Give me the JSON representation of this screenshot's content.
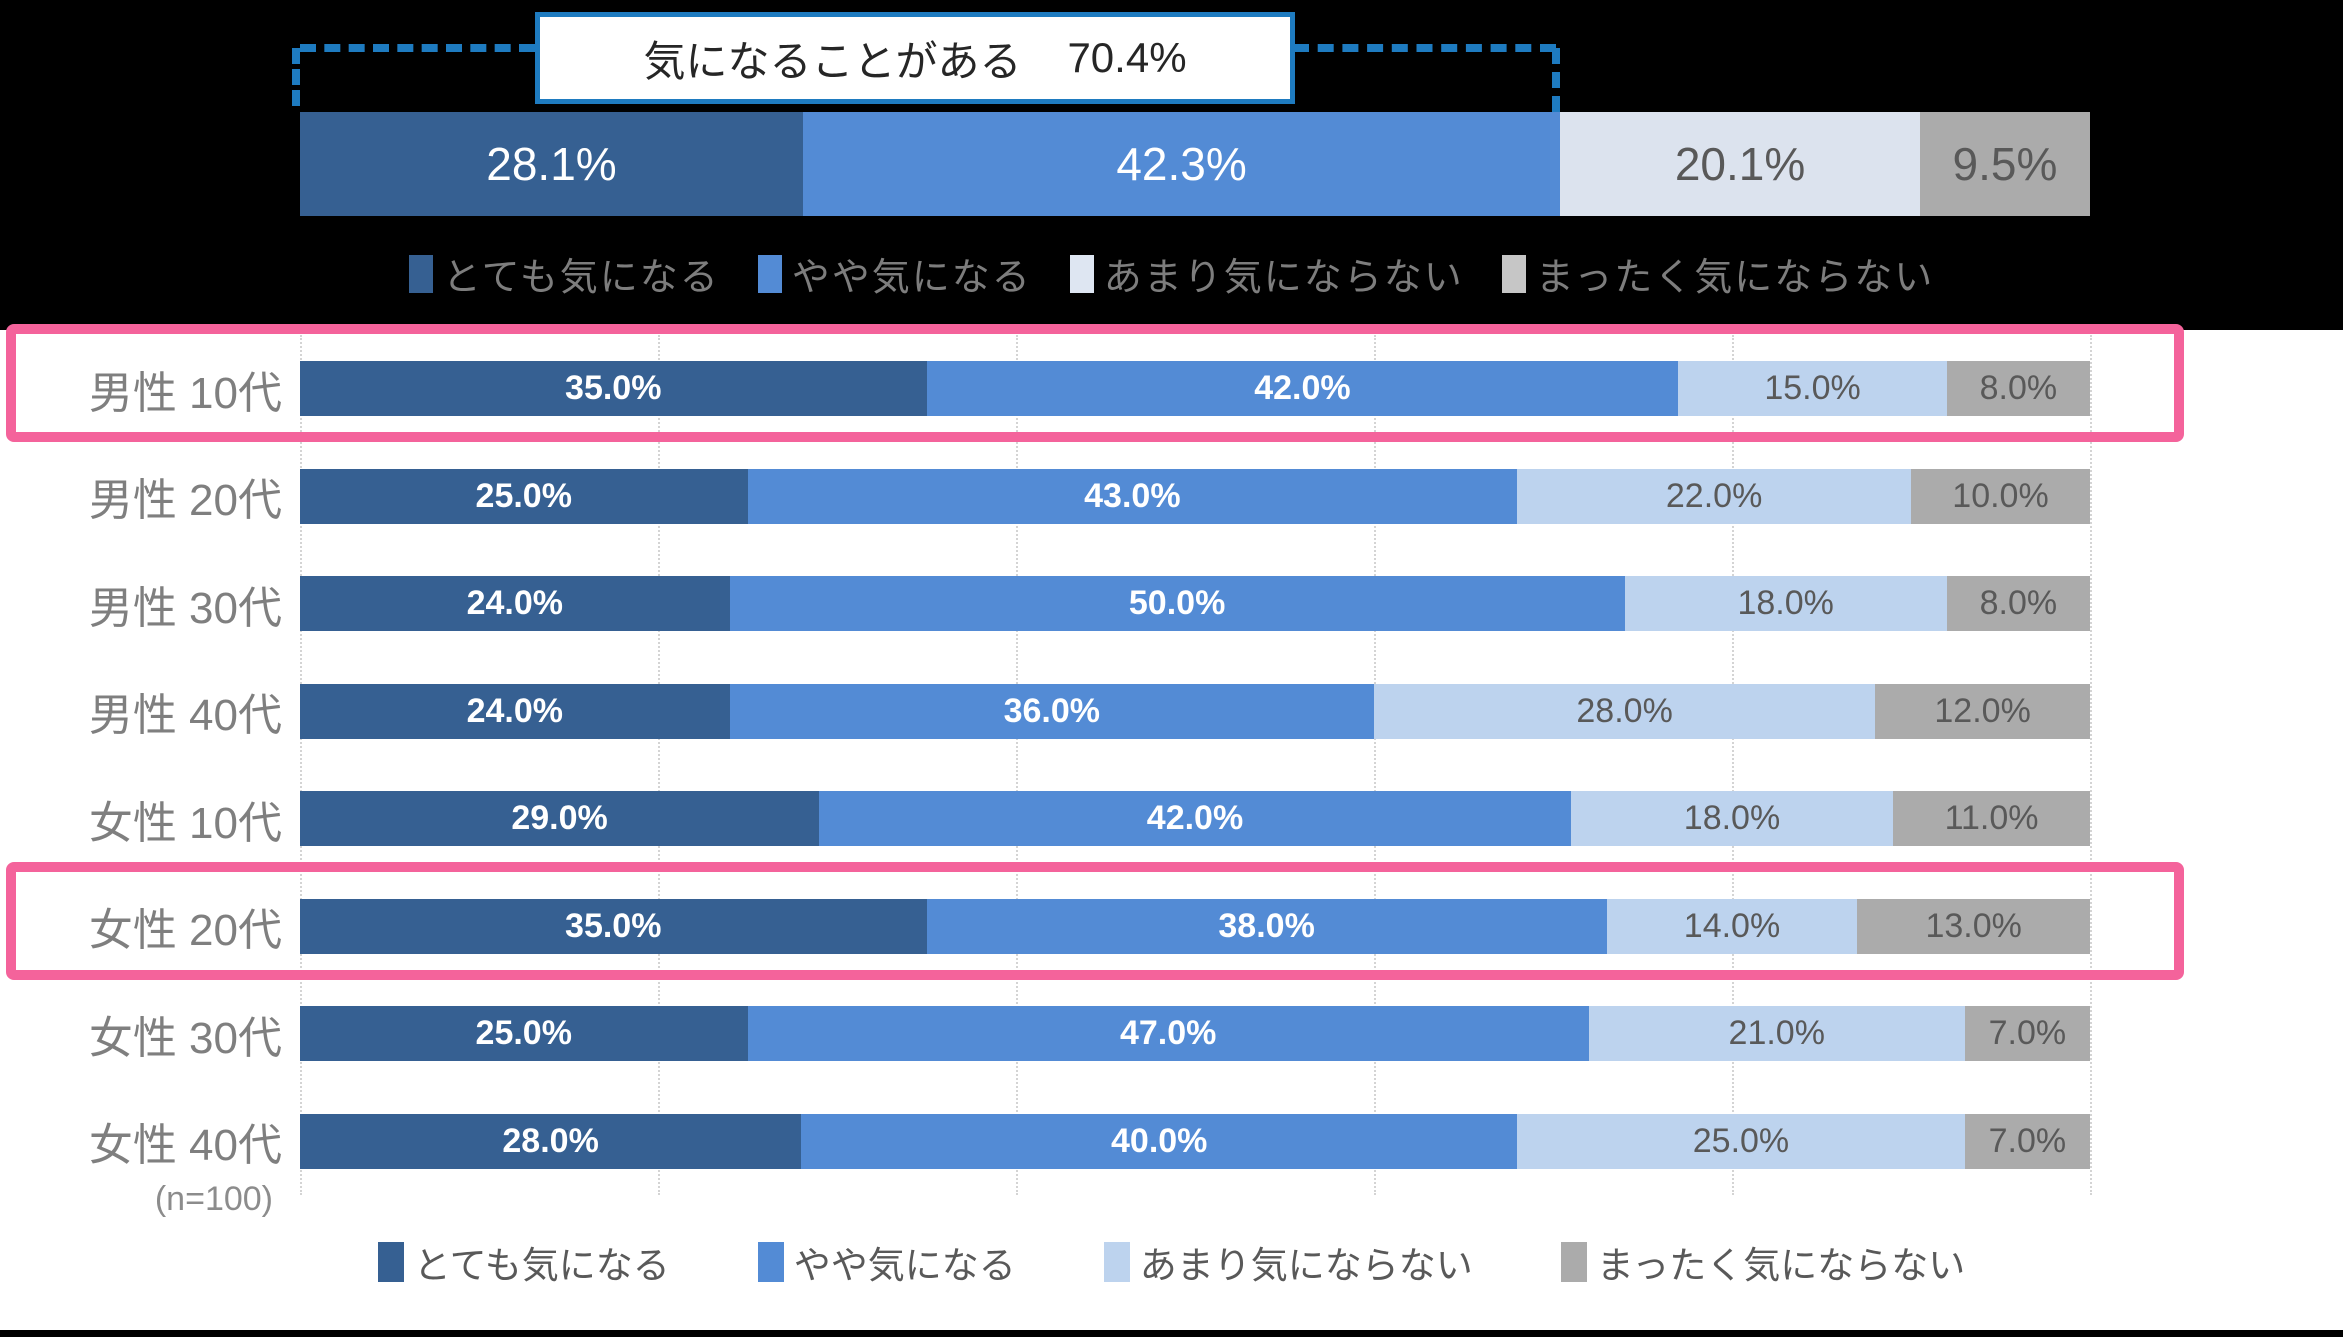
{
  "summary": {
    "callout_label": "気になることがある",
    "callout_value": "70.4%",
    "values": [
      28.1,
      42.3,
      20.1,
      9.5
    ]
  },
  "legend": {
    "labels": [
      "とても気になる",
      "やや気になる",
      "あまり気にならない",
      "まったく気にならない"
    ],
    "top_swatch_colors": [
      "#366092",
      "#538bd5",
      "#dee6f2",
      "#c6c6c6"
    ],
    "bottom_swatch_colors": [
      "#366092",
      "#538bd5",
      "#bdd3ee",
      "#ababab"
    ]
  },
  "chart_data": {
    "type": "bar",
    "stacked": true,
    "orientation": "horizontal",
    "unit": "%",
    "title": "気になることがある 70.4%",
    "categories": [
      "男性 10代",
      "男性 20代",
      "男性 30代",
      "男性 40代",
      "女性 10代",
      "女性 20代",
      "女性 30代",
      "女性 40代"
    ],
    "series": [
      {
        "name": "とても気になる",
        "values": [
          35.0,
          25.0,
          24.0,
          24.0,
          29.0,
          35.0,
          25.0,
          28.0
        ]
      },
      {
        "name": "やや気になる",
        "values": [
          42.0,
          43.0,
          50.0,
          36.0,
          42.0,
          38.0,
          47.0,
          40.0
        ]
      },
      {
        "name": "あまり気にならない",
        "values": [
          15.0,
          22.0,
          18.0,
          28.0,
          18.0,
          14.0,
          21.0,
          25.0
        ]
      },
      {
        "name": "まったく気にならない",
        "values": [
          8.0,
          10.0,
          8.0,
          12.0,
          11.0,
          13.0,
          7.0,
          7.0
        ]
      }
    ],
    "summary_values": [
      28.1,
      42.3,
      20.1,
      9.5
    ],
    "highlighted_categories": [
      "男性 10代",
      "女性 20代"
    ],
    "xlim": [
      0,
      100
    ],
    "gridlines_percent": [
      0,
      20,
      40,
      60,
      80,
      100
    ],
    "legend_position": "top-and-bottom",
    "note": "(n=100)"
  },
  "colors": {
    "segment": [
      "#366092",
      "#538bd5",
      "#bdd3ee",
      "#ababab"
    ],
    "summary_segment": [
      "#366092",
      "#538bd5",
      "#dce3ee",
      "#ababab"
    ],
    "value_text_light": "#ffffff",
    "value_text_dark": "#595959",
    "highlight_border": "#f4639b",
    "callout_border": "#1e7bc0",
    "bracket": "#1e7bc0"
  }
}
